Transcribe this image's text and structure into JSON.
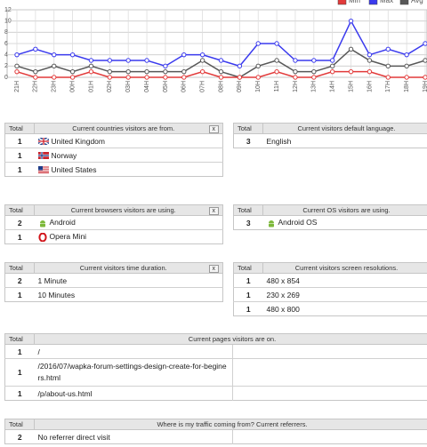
{
  "chart_data": {
    "type": "line",
    "categories": [
      "21H",
      "22H",
      "23H",
      "00H",
      "01H",
      "02H",
      "03H",
      "04H",
      "05H",
      "06H",
      "07H",
      "08H",
      "09H",
      "10H",
      "11H",
      "12H",
      "13H",
      "14H",
      "15H",
      "16H",
      "17H",
      "18H",
      "19H"
    ],
    "series": [
      {
        "name": "Min",
        "color": "#e23a3a",
        "values": [
          1,
          0,
          0,
          0,
          1,
          0,
          0,
          0,
          0,
          0,
          1,
          0,
          0,
          0,
          1,
          0,
          0,
          1,
          1,
          1,
          0,
          0,
          0
        ]
      },
      {
        "name": "Max",
        "color": "#3a3aee",
        "values": [
          4,
          5,
          4,
          4,
          3,
          3,
          3,
          3,
          2,
          4,
          4,
          3,
          2,
          6,
          6,
          3,
          3,
          3,
          10,
          4,
          5,
          4,
          6
        ]
      },
      {
        "name": "Avg",
        "color": "#585858",
        "values": [
          2,
          1,
          2,
          1,
          2,
          1,
          1,
          1,
          1,
          1,
          3,
          1,
          0,
          2,
          3,
          1,
          1,
          2,
          5,
          3,
          2,
          2,
          3
        ]
      }
    ],
    "ylim": [
      0,
      12
    ],
    "yticks": [
      0,
      2,
      4,
      6,
      8,
      10,
      12
    ],
    "grid": true
  },
  "panels": [
    {
      "total_header": "Total",
      "title": "Current countries visitors are from.",
      "close": "x",
      "rows": [
        {
          "total": 1,
          "label": "United Kingdom"
        },
        {
          "total": 1,
          "label": "Norway"
        },
        {
          "total": 1,
          "label": "United States"
        }
      ]
    },
    {
      "total_header": "Total",
      "title": "Current visitors default language.",
      "rows": [
        {
          "total": 3,
          "label": "English"
        }
      ]
    },
    {
      "total_header": "Total",
      "title": "Current browsers visitors are using.",
      "close": "x",
      "rows": [
        {
          "total": 2,
          "label": "Android"
        },
        {
          "total": 1,
          "label": "Opera Mini"
        }
      ]
    },
    {
      "total_header": "Total",
      "title": "Current OS visitors are using.",
      "rows": [
        {
          "total": 3,
          "label": "Android OS"
        }
      ]
    },
    {
      "total_header": "Total",
      "title": "Current visitors time duration.",
      "close": "x",
      "rows": [
        {
          "total": 2,
          "label": "1 Minute"
        },
        {
          "total": 1,
          "label": "10 Minutes"
        }
      ]
    },
    {
      "total_header": "Total",
      "title": "Current visitors screen resolutions.",
      "rows": [
        {
          "total": 1,
          "label": "480 x 854"
        },
        {
          "total": 1,
          "label": "230 x 269"
        },
        {
          "total": 1,
          "label": "480 x 800"
        }
      ]
    },
    {
      "total_header": "Total",
      "title": "Current pages visitors are on.",
      "rows": [
        {
          "total": 1,
          "label": "/"
        },
        {
          "total": 1,
          "label": "/2016/07/wapka-forum-settings-design-create-for-beginers.html"
        },
        {
          "total": 1,
          "label": "/p/about-us.html"
        }
      ]
    },
    {
      "total_header": "Total",
      "title": "Where is my traffic coming from? Current referrers.",
      "rows": [
        {
          "total": 2,
          "label": "No referrer direct visit"
        }
      ]
    }
  ]
}
